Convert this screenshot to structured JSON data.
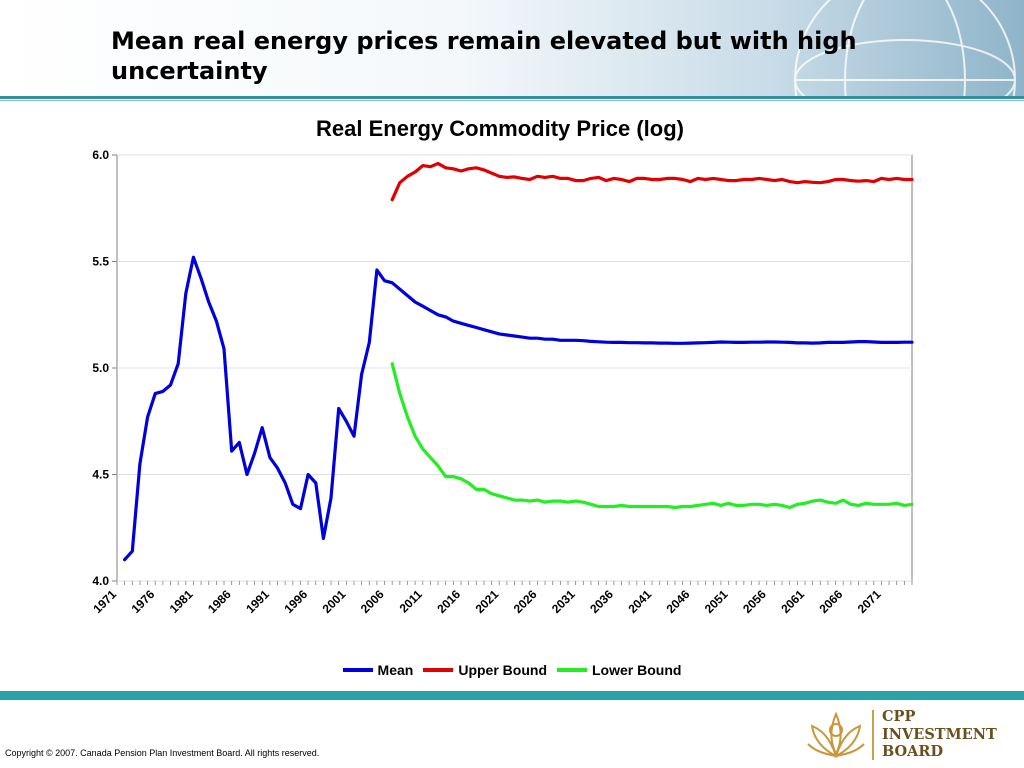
{
  "slide": {
    "title": "Mean real energy prices remain elevated but with high uncertainty",
    "copyright": "Copyright © 2007. Canada Pension Plan Investment Board. All rights reserved.",
    "logo_lines": [
      "CPP",
      "INVESTMENT",
      "BOARD"
    ]
  },
  "colors": {
    "accent": "#2aa3a8",
    "mean": "#0000dd",
    "upper": "#e00000",
    "lower": "#22ee22"
  },
  "chart_data": {
    "type": "line",
    "title": "Real Energy Commodity Price (log)",
    "xlabel": "",
    "ylabel": "",
    "ylim": [
      4.0,
      6.0
    ],
    "xlim": [
      1971,
      2075
    ],
    "yticks": [
      "6.0",
      "5.5",
      "5.0",
      "4.5",
      "4.0"
    ],
    "xticks": [
      "1971",
      "1976",
      "1981",
      "1986",
      "1991",
      "1996",
      "2001",
      "2006",
      "2011",
      "2016",
      "2021",
      "2026",
      "2031",
      "2036",
      "2041",
      "2046",
      "2051",
      "2056",
      "2061",
      "2066",
      "2071"
    ],
    "grid": true,
    "legend_position": "bottom",
    "series": [
      {
        "name": "Mean",
        "x": [
          1972,
          1973,
          1974,
          1975,
          1976,
          1977,
          1978,
          1979,
          1980,
          1981,
          1982,
          1983,
          1984,
          1985,
          1986,
          1987,
          1988,
          1989,
          1990,
          1991,
          1992,
          1993,
          1994,
          1995,
          1996,
          1997,
          1998,
          1999,
          2000,
          2001,
          2002,
          2003,
          2004,
          2005,
          2006,
          2007,
          2008,
          2009,
          2010,
          2011,
          2012,
          2013,
          2014,
          2015,
          2016,
          2017,
          2018,
          2019,
          2020,
          2021,
          2022,
          2023,
          2024,
          2025,
          2026,
          2027,
          2028,
          2029,
          2030,
          2031,
          2032,
          2033,
          2034,
          2035,
          2036,
          2037,
          2038,
          2039,
          2040,
          2041,
          2042,
          2043,
          2044,
          2045,
          2046,
          2047,
          2048,
          2049,
          2050,
          2051,
          2052,
          2053,
          2054,
          2055,
          2056,
          2057,
          2058,
          2059,
          2060,
          2061,
          2062,
          2063,
          2064,
          2065,
          2066,
          2067,
          2068,
          2069,
          2070,
          2071,
          2072,
          2073,
          2074,
          2075
        ],
        "values": [
          4.1,
          4.14,
          4.55,
          4.77,
          4.88,
          4.89,
          4.92,
          5.02,
          5.35,
          5.52,
          5.42,
          5.31,
          5.22,
          5.09,
          4.61,
          4.65,
          4.5,
          4.6,
          4.72,
          4.58,
          4.53,
          4.46,
          4.36,
          4.34,
          4.5,
          4.46,
          4.2,
          4.39,
          4.81,
          4.75,
          4.68,
          4.97,
          5.12,
          5.46,
          5.41,
          5.4,
          5.37,
          5.34,
          5.31,
          5.29,
          5.27,
          5.25,
          5.24,
          5.22,
          5.21,
          5.2,
          5.19,
          5.18,
          5.17,
          5.16,
          5.155,
          5.15,
          5.145,
          5.14,
          5.14,
          5.135,
          5.135,
          5.13,
          5.13,
          5.13,
          5.128,
          5.125,
          5.123,
          5.121,
          5.12,
          5.12,
          5.119,
          5.119,
          5.118,
          5.118,
          5.117,
          5.117,
          5.116,
          5.116,
          5.117,
          5.118,
          5.119,
          5.12,
          5.122,
          5.121,
          5.12,
          5.12,
          5.121,
          5.121,
          5.122,
          5.122,
          5.121,
          5.12,
          5.118,
          5.118,
          5.117,
          5.118,
          5.12,
          5.12,
          5.12,
          5.122,
          5.124,
          5.124,
          5.122,
          5.12,
          5.12,
          5.12,
          5.121,
          5.121
        ]
      },
      {
        "name": "Upper Bound",
        "x": [
          2007,
          2008,
          2009,
          2010,
          2011,
          2012,
          2013,
          2014,
          2015,
          2016,
          2017,
          2018,
          2019,
          2020,
          2021,
          2022,
          2023,
          2024,
          2025,
          2026,
          2027,
          2028,
          2029,
          2030,
          2031,
          2032,
          2033,
          2034,
          2035,
          2036,
          2037,
          2038,
          2039,
          2040,
          2041,
          2042,
          2043,
          2044,
          2045,
          2046,
          2047,
          2048,
          2049,
          2050,
          2051,
          2052,
          2053,
          2054,
          2055,
          2056,
          2057,
          2058,
          2059,
          2060,
          2061,
          2062,
          2063,
          2064,
          2065,
          2066,
          2067,
          2068,
          2069,
          2070,
          2071,
          2072,
          2073,
          2074,
          2075
        ],
        "values": [
          5.79,
          5.87,
          5.9,
          5.92,
          5.95,
          5.945,
          5.96,
          5.94,
          5.935,
          5.925,
          5.935,
          5.94,
          5.93,
          5.915,
          5.9,
          5.895,
          5.897,
          5.89,
          5.885,
          5.9,
          5.895,
          5.9,
          5.89,
          5.89,
          5.88,
          5.88,
          5.89,
          5.895,
          5.88,
          5.89,
          5.885,
          5.875,
          5.89,
          5.89,
          5.885,
          5.885,
          5.89,
          5.89,
          5.885,
          5.875,
          5.89,
          5.885,
          5.89,
          5.885,
          5.88,
          5.88,
          5.885,
          5.885,
          5.89,
          5.885,
          5.88,
          5.885,
          5.875,
          5.87,
          5.875,
          5.872,
          5.87,
          5.875,
          5.885,
          5.885,
          5.88,
          5.877,
          5.88,
          5.875,
          5.89,
          5.885,
          5.89,
          5.885,
          5.885
        ]
      },
      {
        "name": "Lower Bound",
        "x": [
          2007,
          2008,
          2009,
          2010,
          2011,
          2012,
          2013,
          2014,
          2015,
          2016,
          2017,
          2018,
          2019,
          2020,
          2021,
          2022,
          2023,
          2024,
          2025,
          2026,
          2027,
          2028,
          2029,
          2030,
          2031,
          2032,
          2033,
          2034,
          2035,
          2036,
          2037,
          2038,
          2039,
          2040,
          2041,
          2042,
          2043,
          2044,
          2045,
          2046,
          2047,
          2048,
          2049,
          2050,
          2051,
          2052,
          2053,
          2054,
          2055,
          2056,
          2057,
          2058,
          2059,
          2060,
          2061,
          2062,
          2063,
          2064,
          2065,
          2066,
          2067,
          2068,
          2069,
          2070,
          2071,
          2072,
          2073,
          2074,
          2075
        ],
        "values": [
          5.02,
          4.88,
          4.77,
          4.68,
          4.62,
          4.58,
          4.54,
          4.49,
          4.49,
          4.48,
          4.46,
          4.43,
          4.43,
          4.41,
          4.4,
          4.39,
          4.38,
          4.38,
          4.375,
          4.38,
          4.37,
          4.375,
          4.375,
          4.37,
          4.375,
          4.37,
          4.36,
          4.35,
          4.35,
          4.35,
          4.355,
          4.35,
          4.35,
          4.35,
          4.35,
          4.35,
          4.35,
          4.345,
          4.35,
          4.35,
          4.355,
          4.36,
          4.365,
          4.355,
          4.365,
          4.355,
          4.355,
          4.36,
          4.36,
          4.355,
          4.36,
          4.355,
          4.345,
          4.36,
          4.365,
          4.375,
          4.38,
          4.37,
          4.365,
          4.38,
          4.36,
          4.355,
          4.365,
          4.36,
          4.36,
          4.36,
          4.365,
          4.355,
          4.36
        ]
      }
    ]
  }
}
